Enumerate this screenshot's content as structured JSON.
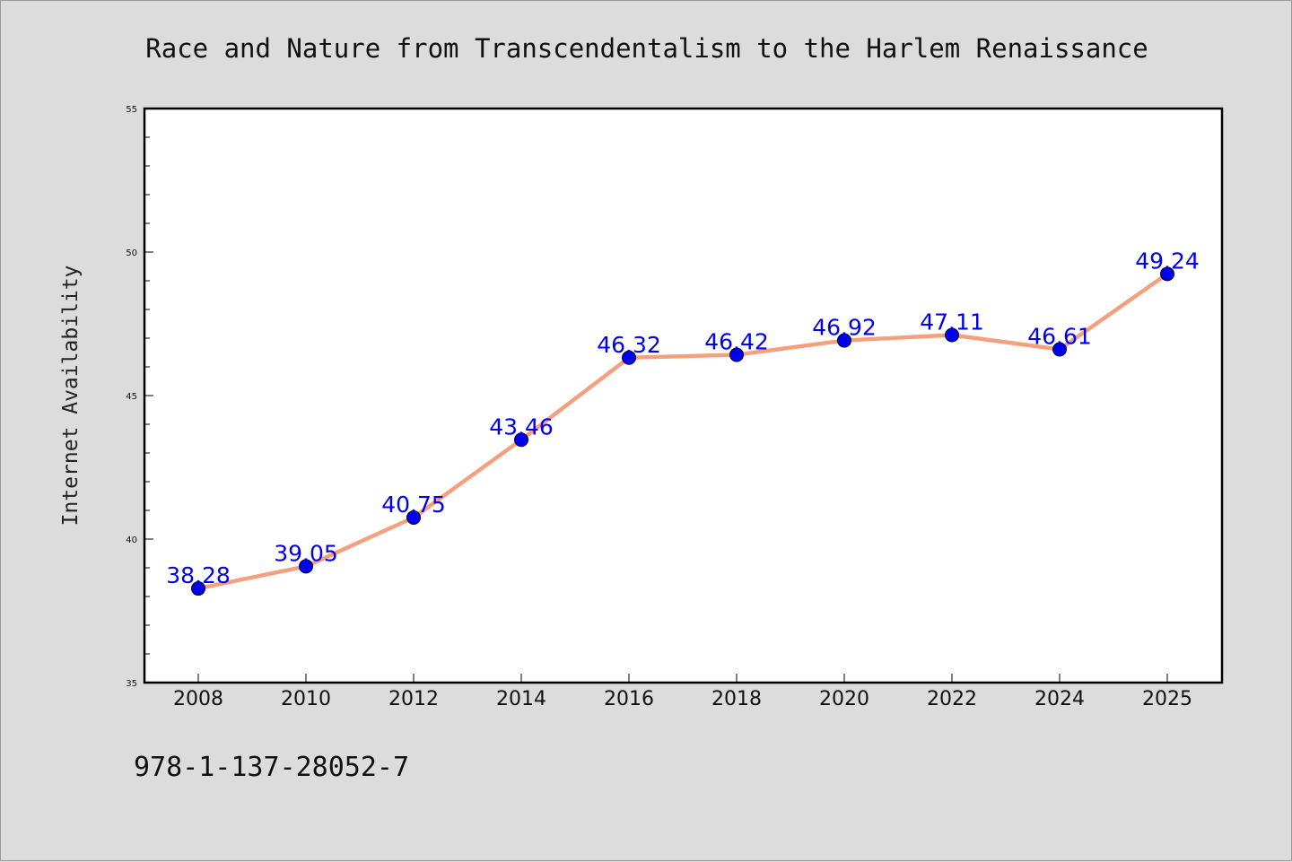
{
  "chart_data": {
    "type": "line",
    "title": "Race and Nature from Transcendentalism to the Harlem Renaissance",
    "xlabel": "",
    "ylabel": "Internet Availability",
    "categories": [
      "2008",
      "2010",
      "2012",
      "2014",
      "2016",
      "2018",
      "2020",
      "2022",
      "2024",
      "2025"
    ],
    "series": [
      {
        "values": [
          38.28,
          39.05,
          40.75,
          43.46,
          46.32,
          46.42,
          46.92,
          47.11,
          46.61,
          49.24
        ],
        "labels": [
          "38.28",
          "39.05",
          "40.75",
          "43.46",
          "46.32",
          "46.42",
          "46.92",
          "47.11",
          "46.61",
          "49.24"
        ]
      }
    ],
    "ylim": [
      35,
      55
    ],
    "yticks": [
      "35",
      "40",
      "45",
      "50",
      "55"
    ],
    "grid": false,
    "legend": "none",
    "line_color": "#f4a07e",
    "marker_color": "#0000ee",
    "label_color": "#0000ee"
  },
  "footer": {
    "isbn": "978-1-137-28052-7"
  }
}
